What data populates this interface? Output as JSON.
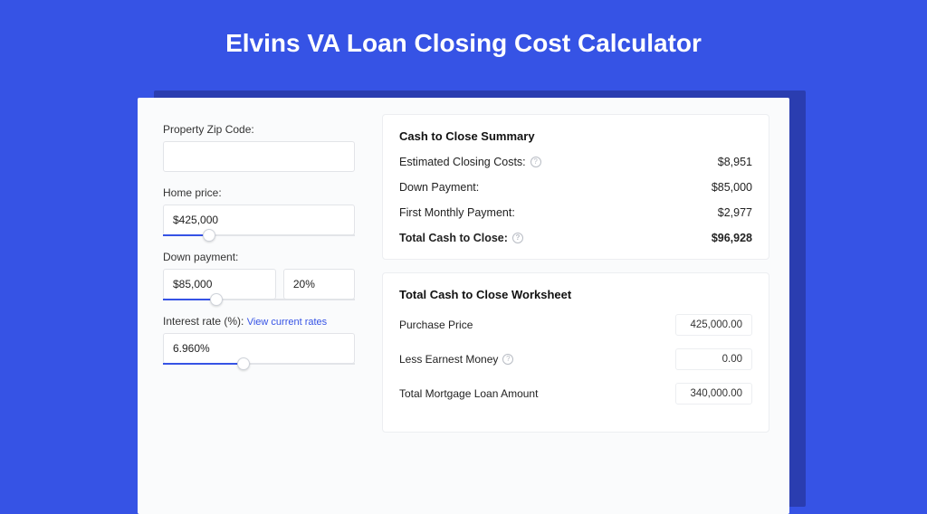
{
  "page": {
    "title": "Elvins VA Loan Closing Cost Calculator",
    "background_color": "#3653e5",
    "card_shadow_color": "#2a3db0",
    "card_bg": "#fafbfc",
    "accent_color": "#3653e5",
    "border_color": "#e2e4e8"
  },
  "inputs": {
    "zip": {
      "label": "Property Zip Code:",
      "value": ""
    },
    "home_price": {
      "label": "Home price:",
      "value": "$425,000",
      "slider_percent": 24
    },
    "down_payment": {
      "label": "Down payment:",
      "amount": "$85,000",
      "percent": "20%",
      "slider_percent": 28
    },
    "interest_rate": {
      "label": "Interest rate (%):",
      "link_text": "View current rates",
      "value": "6.960%",
      "slider_percent": 42
    }
  },
  "summary": {
    "title": "Cash to Close Summary",
    "rows": [
      {
        "label": "Estimated Closing Costs:",
        "help": true,
        "value": "$8,951"
      },
      {
        "label": "Down Payment:",
        "help": false,
        "value": "$85,000"
      },
      {
        "label": "First Monthly Payment:",
        "help": false,
        "value": "$2,977"
      }
    ],
    "total": {
      "label": "Total Cash to Close:",
      "help": true,
      "value": "$96,928"
    }
  },
  "worksheet": {
    "title": "Total Cash to Close Worksheet",
    "rows": [
      {
        "label": "Purchase Price",
        "help": false,
        "value": "425,000.00"
      },
      {
        "label": "Less Earnest Money",
        "help": true,
        "value": "0.00"
      },
      {
        "label": "Total Mortgage Loan Amount",
        "help": false,
        "value": "340,000.00"
      }
    ]
  }
}
